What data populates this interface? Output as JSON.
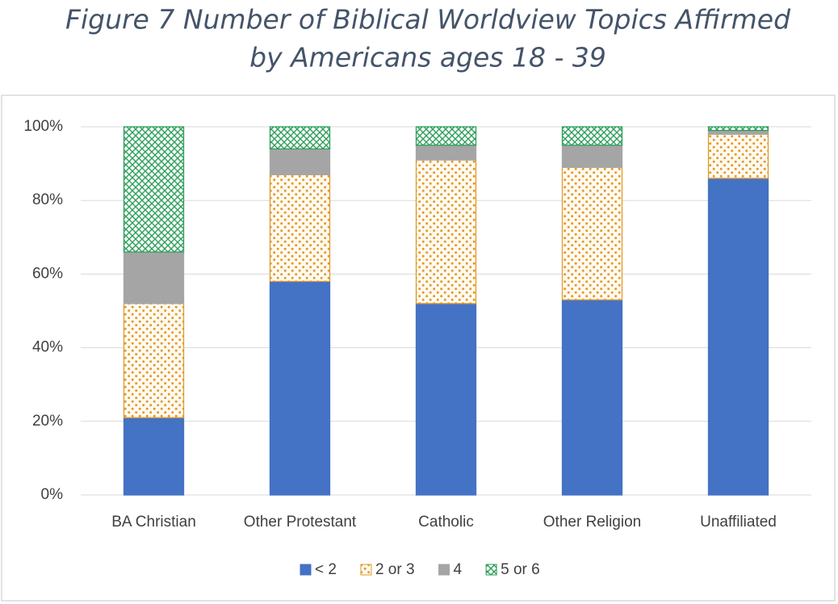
{
  "chart_data": {
    "type": "stacked-bar",
    "title": [
      "Figure 7  Number of Biblical Worldview Topics Affirmed",
      "by Americans ages 18 - 39"
    ],
    "categories": [
      "BA Christian",
      "Other Protestant",
      "Catholic",
      "Other Religion",
      "Unaffiliated"
    ],
    "series": [
      {
        "name": "< 2",
        "color": "#4472c4",
        "values": [
          21,
          58,
          52,
          53,
          86
        ]
      },
      {
        "name": "2 or 3",
        "color": "#e09a2e",
        "values": [
          31,
          29,
          39,
          36,
          12
        ]
      },
      {
        "name": "4",
        "color": "#a5a5a5",
        "values": [
          14,
          7,
          4,
          6,
          1
        ]
      },
      {
        "name": "5 or 6",
        "color": "#2e9e5b",
        "values": [
          34,
          6,
          5,
          5,
          1
        ]
      }
    ],
    "ylim": [
      0,
      100
    ],
    "yticks": [
      {
        "value": 0,
        "label": "0%"
      },
      {
        "value": 20,
        "label": "20%"
      },
      {
        "value": 40,
        "label": "40%"
      },
      {
        "value": 60,
        "label": "60%"
      },
      {
        "value": 80,
        "label": "80%"
      },
      {
        "value": 100,
        "label": "100%"
      }
    ],
    "grid": true,
    "legend": "bottom"
  }
}
